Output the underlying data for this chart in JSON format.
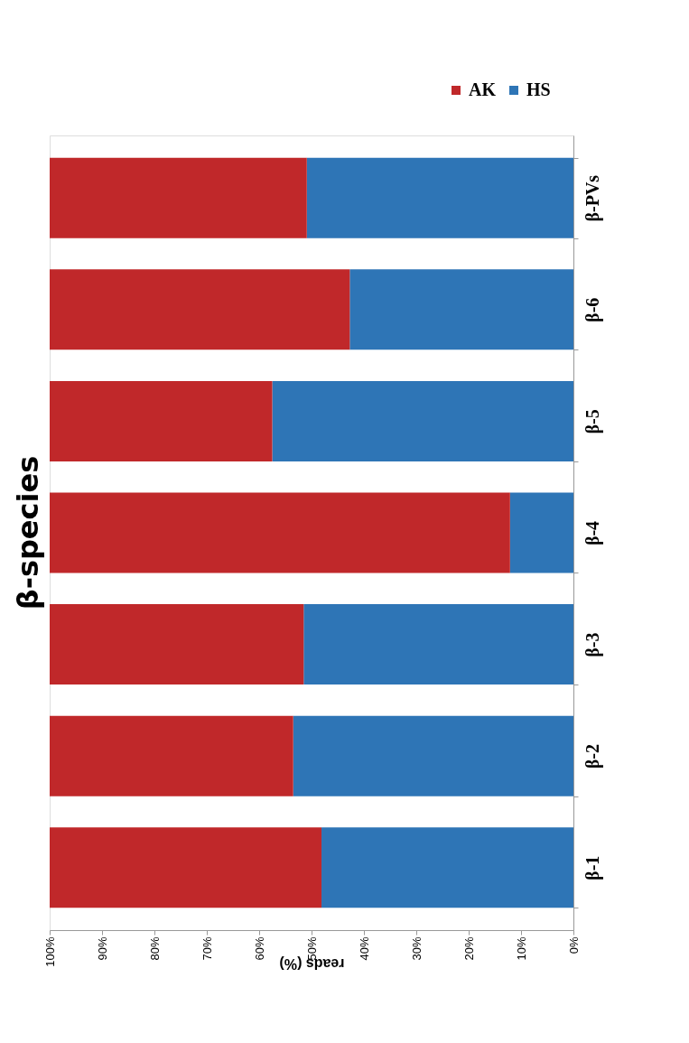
{
  "chart_data": {
    "type": "bar",
    "orientation": "horizontal",
    "stacked": true,
    "title": "β-species",
    "xlabel": "reads (%)",
    "categories": [
      "β-PVs",
      "β-6",
      "β-5",
      "β-4",
      "β-3",
      "β-2",
      "β-1"
    ],
    "series": [
      {
        "name": "HS",
        "color": "#2e75b6",
        "values": [
          50.9,
          42.7,
          57.5,
          12.1,
          51.5,
          53.5,
          48.1
        ]
      },
      {
        "name": "AK",
        "color": "#c0282a",
        "values": [
          49.1,
          57.3,
          42.5,
          87.9,
          48.5,
          46.5,
          51.9
        ]
      }
    ],
    "xlim": [
      100,
      0
    ],
    "xticks": [
      {
        "value": 0,
        "label": "0%"
      },
      {
        "value": 10,
        "label": "10%"
      },
      {
        "value": 20,
        "label": "20%"
      },
      {
        "value": 30,
        "label": "30%"
      },
      {
        "value": 40,
        "label": "40%"
      },
      {
        "value": 50,
        "label": "50%"
      },
      {
        "value": 60,
        "label": "60%"
      },
      {
        "value": 70,
        "label": "70%"
      },
      {
        "value": 80,
        "label": "80%"
      },
      {
        "value": 90,
        "label": "90%"
      },
      {
        "value": 100,
        "label": "100%"
      }
    ],
    "grid": false,
    "legend": "top right"
  }
}
